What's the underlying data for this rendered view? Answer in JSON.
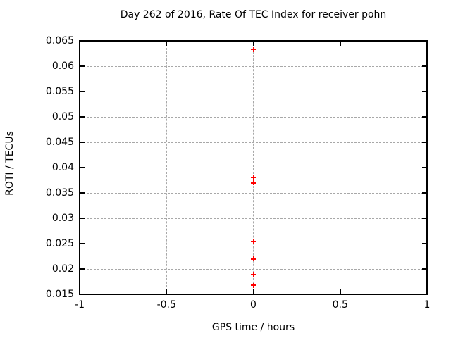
{
  "window": {
    "background": "#ffffff"
  },
  "chart_data": {
    "type": "scatter",
    "title": "Day 262 of 2016, Rate Of TEC Index for receiver pohn",
    "xlabel": "GPS time / hours",
    "ylabel": "ROTI / TECUs",
    "xlim": [
      -1,
      1
    ],
    "ylim": [
      0.015,
      0.065
    ],
    "grid": true,
    "legend": "none",
    "x_ticks": [
      {
        "value": -1,
        "label": "-1"
      },
      {
        "value": -0.5,
        "label": "-0.5"
      },
      {
        "value": 0,
        "label": "0"
      },
      {
        "value": 0.5,
        "label": "0.5"
      },
      {
        "value": 1,
        "label": "1"
      }
    ],
    "y_ticks": [
      {
        "value": 0.065,
        "label": "0.065"
      },
      {
        "value": 0.06,
        "label": "0.06"
      },
      {
        "value": 0.055,
        "label": "0.055"
      },
      {
        "value": 0.05,
        "label": "0.05"
      },
      {
        "value": 0.045,
        "label": "0.045"
      },
      {
        "value": 0.04,
        "label": "0.04"
      },
      {
        "value": 0.035,
        "label": "0.035"
      },
      {
        "value": 0.03,
        "label": "0.03"
      },
      {
        "value": 0.025,
        "label": "0.025"
      },
      {
        "value": 0.02,
        "label": "0.02"
      },
      {
        "value": 0.015,
        "label": "0.015"
      }
    ],
    "series": [
      {
        "marker": "plus",
        "color": "#ff0000",
        "points": [
          {
            "x": 0,
            "y": 0.0633
          },
          {
            "x": 0,
            "y": 0.038
          },
          {
            "x": 0,
            "y": 0.037
          },
          {
            "x": 0,
            "y": 0.0254
          },
          {
            "x": 0,
            "y": 0.022
          },
          {
            "x": 0,
            "y": 0.0189
          },
          {
            "x": 0,
            "y": 0.0168
          }
        ]
      }
    ],
    "colors": {
      "marker": "#ff0000",
      "grid": "#a8a8a8",
      "axis": "#000000",
      "text": "#000000"
    }
  }
}
